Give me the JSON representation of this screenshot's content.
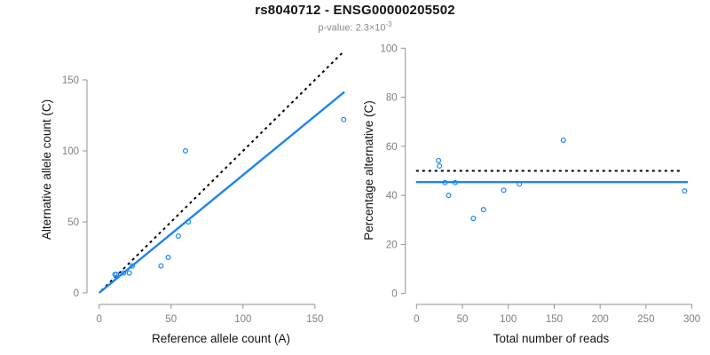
{
  "header": {
    "title": "rs8040712 - ENSG00000205502",
    "subtitle_prefix": "p-value: ",
    "subtitle_value": "2.3×10",
    "subtitle_exponent": "-3"
  },
  "colors": {
    "point_blue": "#1C86EE",
    "line_blue": "#1C86EE",
    "dotted_line": "#000000",
    "axis_line": "#919191",
    "tick_label": "#7F7F7F",
    "axis_title": "#141414",
    "background": "#FFFFFF"
  },
  "chart_data": [
    {
      "type": "scatter",
      "panel": "allele-counts",
      "title": "",
      "xlabel": "Reference allele count (A)",
      "ylabel": "Alternative allele count (C)",
      "x_ticks": [
        0,
        50,
        100,
        150
      ],
      "y_ticks": [
        0,
        50,
        100,
        150
      ],
      "xlim": [
        0,
        170
      ],
      "ylim": [
        0,
        150
      ],
      "grid": false,
      "legend": null,
      "marker": "open-circle",
      "points": [
        [
          11,
          13
        ],
        [
          12,
          13
        ],
        [
          17,
          14
        ],
        [
          21,
          14
        ],
        [
          23,
          19
        ],
        [
          43,
          19
        ],
        [
          48,
          25
        ],
        [
          55,
          40
        ],
        [
          62,
          50
        ],
        [
          60,
          100
        ],
        [
          170,
          122
        ]
      ],
      "lines": [
        {
          "name": "expected-1to1-line",
          "style": "dotted",
          "slope": 1,
          "intercept": 0
        },
        {
          "name": "fitted-allelic-ratio-line",
          "style": "solid",
          "slope": 0.83,
          "intercept": 0
        }
      ]
    },
    {
      "type": "scatter",
      "panel": "percentage-vs-coverage",
      "title": "",
      "xlabel": "Total number of reads",
      "ylabel": "Percentage alternative (C)",
      "x_ticks": [
        0,
        50,
        100,
        150,
        200,
        250,
        300
      ],
      "y_ticks": [
        0,
        20,
        40,
        60,
        80,
        100
      ],
      "xlim": [
        0,
        300
      ],
      "ylim": [
        0,
        100
      ],
      "grid": false,
      "legend": null,
      "marker": "open-circle",
      "points": [
        [
          24,
          54.2
        ],
        [
          25,
          52.0
        ],
        [
          31,
          45.2
        ],
        [
          35,
          40.0
        ],
        [
          42,
          45.2
        ],
        [
          62,
          30.6
        ],
        [
          73,
          34.2
        ],
        [
          95,
          42.1
        ],
        [
          112,
          44.6
        ],
        [
          160,
          62.5
        ],
        [
          292,
          41.8
        ]
      ],
      "lines": [
        {
          "name": "expected-50pct-line",
          "style": "dotted",
          "y": 50
        },
        {
          "name": "fitted-percentage-line",
          "style": "solid",
          "y": 45.4
        }
      ]
    }
  ]
}
